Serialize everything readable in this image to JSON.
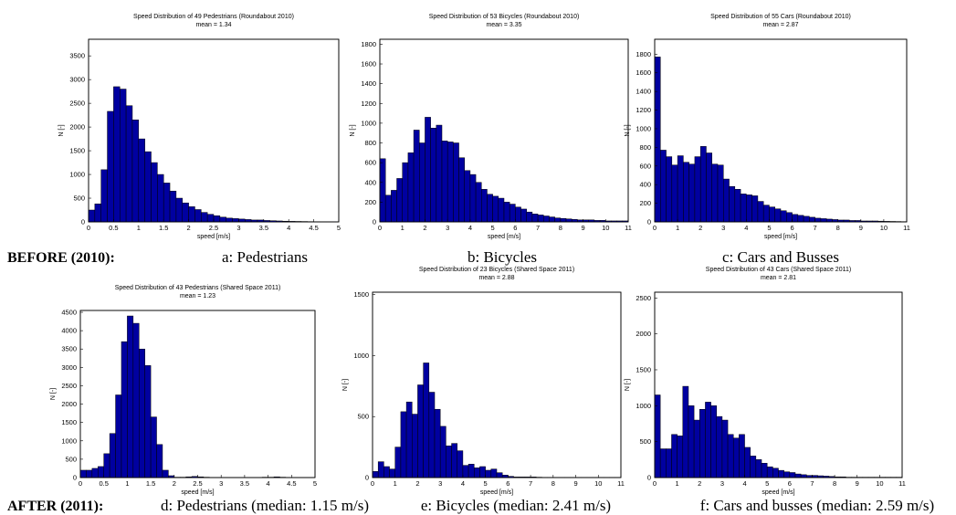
{
  "row_labels": [
    "BEFORE (2010):",
    "AFTER (2011):"
  ],
  "chart_data": [
    {
      "type": "histogram",
      "title": "Speed Distribution of 49 Pedestrians (Roundabout 2010)",
      "subtitle": "mean = 1.34",
      "x_label": "speed [m/s]",
      "y_label": "N [-]",
      "caption": "a: Pedestrians",
      "color": "#0000a0",
      "bins": [
        0,
        0.125,
        0.25,
        0.375,
        0.5,
        0.625,
        0.75,
        0.875,
        1,
        1.125,
        1.25,
        1.375,
        1.5,
        1.625,
        1.75,
        1.875,
        2,
        2.125,
        2.25,
        2.375,
        2.5,
        2.625,
        2.75,
        2.875,
        3,
        3.125,
        3.25,
        3.375,
        3.5,
        3.625,
        3.75,
        3.875,
        4,
        4.125,
        4.25,
        4.375,
        4.5,
        4.625,
        4.75,
        4.875,
        5
      ],
      "values": [
        250,
        380,
        1100,
        2330,
        2850,
        2800,
        2450,
        2150,
        1750,
        1480,
        1250,
        1000,
        820,
        650,
        500,
        400,
        320,
        260,
        200,
        160,
        130,
        100,
        80,
        70,
        60,
        50,
        40,
        40,
        30,
        25,
        20,
        15,
        12,
        10,
        8,
        6,
        5,
        4,
        3,
        2
      ],
      "xlim": [
        0,
        5
      ],
      "xticks": [
        0,
        0.5,
        1,
        1.5,
        2,
        2.5,
        3,
        3.5,
        4,
        4.5,
        5
      ],
      "ylim": [
        0,
        3850
      ],
      "yticks": [
        0,
        500,
        1000,
        1500,
        2000,
        2500,
        3000,
        3500
      ]
    },
    {
      "type": "histogram",
      "title": "Speed Distribution of 53 Bicycles (Roundabout 2010)",
      "subtitle": "mean = 3.35",
      "x_label": "speed [m/s]",
      "y_label": "N [-]",
      "caption": "b: Bicycles",
      "color": "#0000a0",
      "bins": [
        0,
        0.25,
        0.5,
        0.75,
        1,
        1.25,
        1.5,
        1.75,
        2,
        2.25,
        2.5,
        2.75,
        3,
        3.25,
        3.5,
        3.75,
        4,
        4.25,
        4.5,
        4.75,
        5,
        5.25,
        5.5,
        5.75,
        6,
        6.25,
        6.5,
        6.75,
        7,
        7.25,
        7.5,
        7.75,
        8,
        8.25,
        8.5,
        8.75,
        9,
        9.25,
        9.5,
        9.75,
        10,
        10.25,
        10.5,
        10.75,
        11
      ],
      "values": [
        640,
        270,
        320,
        440,
        600,
        700,
        930,
        800,
        1060,
        950,
        980,
        820,
        810,
        800,
        650,
        520,
        480,
        400,
        330,
        280,
        260,
        240,
        200,
        180,
        150,
        130,
        100,
        80,
        70,
        60,
        50,
        40,
        35,
        30,
        25,
        20,
        20,
        20,
        15,
        15,
        10,
        10,
        10,
        10
      ],
      "xlim": [
        0,
        11
      ],
      "xticks": [
        0,
        1,
        2,
        3,
        4,
        5,
        6,
        7,
        8,
        9,
        10,
        11
      ],
      "ylim": [
        0,
        1850
      ],
      "yticks": [
        0,
        200,
        400,
        600,
        800,
        1000,
        1200,
        1400,
        1600,
        1800
      ]
    },
    {
      "type": "histogram",
      "title": "Speed Distribution of 55 Cars (Roundabout 2010)",
      "subtitle": "mean = 2.87",
      "x_label": "speed [m/s]",
      "y_label": "N [-]",
      "caption": "c: Cars and Busses",
      "color": "#0000a0",
      "bins": [
        0,
        0.25,
        0.5,
        0.75,
        1,
        1.25,
        1.5,
        1.75,
        2,
        2.25,
        2.5,
        2.75,
        3,
        3.25,
        3.5,
        3.75,
        4,
        4.25,
        4.5,
        4.75,
        5,
        5.25,
        5.5,
        5.75,
        6,
        6.25,
        6.5,
        6.75,
        7,
        7.25,
        7.5,
        7.75,
        8,
        8.25,
        8.5,
        8.75,
        9,
        9.25,
        9.5,
        9.75,
        10,
        10.25,
        10.5,
        10.75,
        11
      ],
      "values": [
        1770,
        770,
        700,
        610,
        710,
        640,
        620,
        700,
        810,
        740,
        620,
        610,
        460,
        380,
        350,
        300,
        290,
        280,
        220,
        180,
        160,
        140,
        120,
        100,
        80,
        70,
        60,
        50,
        40,
        35,
        30,
        25,
        20,
        20,
        15,
        15,
        10,
        10,
        10,
        8,
        6,
        5,
        4,
        3
      ],
      "xlim": [
        0,
        11
      ],
      "xticks": [
        0,
        1,
        2,
        3,
        4,
        5,
        6,
        7,
        8,
        9,
        10,
        11
      ],
      "ylim": [
        0,
        1960
      ],
      "yticks": [
        0,
        200,
        400,
        600,
        800,
        1000,
        1200,
        1400,
        1600,
        1800
      ]
    },
    {
      "type": "histogram",
      "title": "Speed Distribution of 43 Pedestrians (Shared Space 2011)",
      "subtitle": "mean = 1.23",
      "x_label": "speed [m/s]",
      "y_label": "N [-]",
      "caption": "d: Pedestrians (median: 1.15 m/s)",
      "color": "#0000a0",
      "bins": [
        0,
        0.125,
        0.25,
        0.375,
        0.5,
        0.625,
        0.75,
        0.875,
        1,
        1.125,
        1.25,
        1.375,
        1.5,
        1.625,
        1.75,
        1.875,
        2,
        2.125,
        2.25,
        2.375,
        2.5,
        2.625,
        2.75,
        2.875,
        3,
        3.125,
        3.25,
        3.375,
        3.5,
        3.625,
        3.75,
        3.875,
        4,
        4.125,
        4.25,
        4.375,
        4.5,
        4.625,
        4.75,
        4.875,
        5
      ],
      "values": [
        200,
        200,
        250,
        300,
        650,
        1200,
        2250,
        3700,
        4400,
        4200,
        3500,
        3050,
        1650,
        900,
        200,
        50,
        10,
        10,
        20,
        30,
        20,
        10,
        5,
        5,
        5,
        5,
        5,
        5,
        5,
        5,
        5,
        10,
        10,
        20,
        10,
        5,
        5,
        5,
        5,
        5
      ],
      "xlim": [
        0,
        5
      ],
      "xticks": [
        0,
        0.5,
        1,
        1.5,
        2,
        2.5,
        3,
        3.5,
        4,
        4.5,
        5
      ],
      "ylim": [
        0,
        4550
      ],
      "yticks": [
        0,
        500,
        1000,
        1500,
        2000,
        2500,
        3000,
        3500,
        4000,
        4500
      ]
    },
    {
      "type": "histogram",
      "title": "Speed Distribution of 23 Bicycles (Shared Space 2011)",
      "subtitle": "mean = 2.88",
      "x_label": "speed [m/s]",
      "y_label": "N [-]",
      "caption": "e: Bicycles (median: 2.41 m/s)",
      "color": "#0000a0",
      "bins": [
        0,
        0.25,
        0.5,
        0.75,
        1,
        1.25,
        1.5,
        1.75,
        2,
        2.25,
        2.5,
        2.75,
        3,
        3.25,
        3.5,
        3.75,
        4,
        4.25,
        4.5,
        4.75,
        5,
        5.25,
        5.5,
        5.75,
        6,
        6.25,
        6.5,
        6.75,
        7,
        7.25,
        7.5,
        7.75,
        8,
        8.25,
        8.5,
        8.75,
        9,
        9.25,
        9.5,
        9.75,
        10,
        10.25,
        10.5,
        10.75,
        11
      ],
      "values": [
        50,
        130,
        90,
        70,
        250,
        540,
        620,
        520,
        760,
        940,
        700,
        560,
        420,
        260,
        280,
        220,
        100,
        110,
        80,
        90,
        60,
        70,
        40,
        20,
        10,
        5,
        5,
        5,
        5,
        3,
        2,
        2,
        2,
        2,
        2,
        2,
        2,
        2,
        2,
        2,
        2,
        2,
        2,
        2
      ],
      "xlim": [
        0,
        11
      ],
      "xticks": [
        0,
        1,
        2,
        3,
        4,
        5,
        6,
        7,
        8,
        9,
        10,
        11
      ],
      "ylim": [
        0,
        1520
      ],
      "yticks": [
        0,
        500,
        1000,
        1500
      ]
    },
    {
      "type": "histogram",
      "title": "Speed Distribution of 43 Cars (Shared Space 2011)",
      "subtitle": "mean = 2.81",
      "x_label": "speed [m/s]",
      "y_label": "N [-]",
      "caption": "f: Cars and busses (median: 2.59 m/s)",
      "color": "#0000a0",
      "bins": [
        0,
        0.25,
        0.5,
        0.75,
        1,
        1.25,
        1.5,
        1.75,
        2,
        2.25,
        2.5,
        2.75,
        3,
        3.25,
        3.5,
        3.75,
        4,
        4.25,
        4.5,
        4.75,
        5,
        5.25,
        5.5,
        5.75,
        6,
        6.25,
        6.5,
        6.75,
        7,
        7.25,
        7.5,
        7.75,
        8,
        8.25,
        8.5,
        8.75,
        9,
        9.25,
        9.5,
        9.75,
        10,
        10.25,
        10.5,
        10.75,
        11
      ],
      "values": [
        1150,
        400,
        400,
        600,
        580,
        1270,
        1000,
        800,
        950,
        1050,
        1000,
        850,
        800,
        600,
        550,
        600,
        420,
        300,
        250,
        200,
        150,
        130,
        100,
        80,
        70,
        50,
        40,
        30,
        30,
        25,
        20,
        15,
        10,
        10,
        5,
        5,
        5,
        5,
        5,
        5,
        5,
        5,
        5,
        5
      ],
      "xlim": [
        0,
        11
      ],
      "xticks": [
        0,
        1,
        2,
        3,
        4,
        5,
        6,
        7,
        8,
        9,
        10,
        11
      ],
      "ylim": [
        0,
        2580
      ],
      "yticks": [
        0,
        500,
        1000,
        1500,
        2000,
        2500
      ]
    }
  ]
}
